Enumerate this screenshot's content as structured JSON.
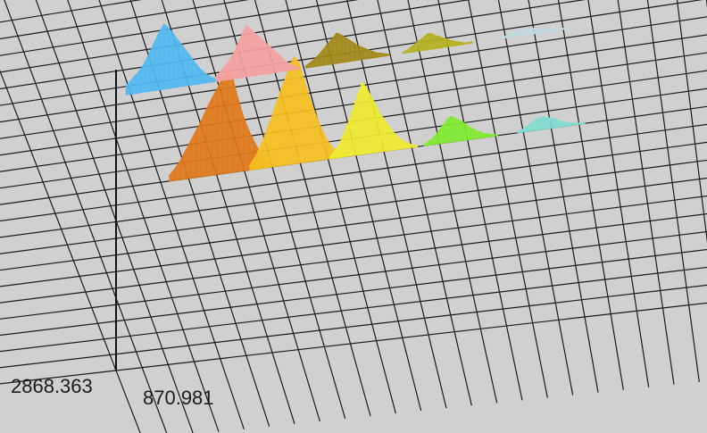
{
  "chart_data": {
    "type": "area",
    "projection": "3d-waterfall",
    "title": "",
    "axis_readouts": {
      "left": "2868.363",
      "right": "870.981"
    },
    "grid": true,
    "background_color": "#d0d0d0",
    "grid_color": "#1a1a1a",
    "series": [
      {
        "color": "#e07818",
        "values": [
          0.05,
          0.1,
          0.16,
          0.24,
          0.32,
          0.4,
          0.48,
          0.58,
          0.66,
          0.74,
          0.82,
          0.88,
          0.8,
          0.62,
          0.46,
          0.34,
          0.24,
          0.15,
          0.08,
          0.03
        ]
      },
      {
        "color": "#f5c020",
        "values": [
          0.04,
          0.1,
          0.18,
          0.28,
          0.38,
          0.5,
          0.62,
          0.72,
          0.84,
          0.92,
          0.86,
          0.7,
          0.56,
          0.44,
          0.32,
          0.22,
          0.14,
          0.08,
          0.04,
          0.02
        ]
      },
      {
        "color": "#f0ea30",
        "values": [
          0.02,
          0.06,
          0.12,
          0.2,
          0.3,
          0.4,
          0.52,
          0.62,
          0.56,
          0.48,
          0.4,
          0.32,
          0.26,
          0.2,
          0.14,
          0.1,
          0.06,
          0.04,
          0.02,
          0.01
        ]
      },
      {
        "color": "#80ea30",
        "values": [
          0.01,
          0.03,
          0.05,
          0.08,
          0.12,
          0.16,
          0.2,
          0.22,
          0.2,
          0.18,
          0.16,
          0.13,
          0.1,
          0.08,
          0.06,
          0.04,
          0.03,
          0.02,
          0.01,
          0.01
        ]
      },
      {
        "color": "#80dcd0",
        "values": [
          0.01,
          0.02,
          0.03,
          0.05,
          0.07,
          0.09,
          0.1,
          0.11,
          0.1,
          0.09,
          0.08,
          0.07,
          0.05,
          0.04,
          0.03,
          0.02,
          0.02,
          0.01,
          0.01,
          0.01
        ]
      },
      {
        "color": "#50b8f0",
        "values": [
          0.08,
          0.12,
          0.16,
          0.2,
          0.26,
          0.34,
          0.42,
          0.5,
          0.56,
          0.52,
          0.46,
          0.4,
          0.34,
          0.28,
          0.22,
          0.16,
          0.11,
          0.07,
          0.04,
          0.02
        ]
      },
      {
        "color": "#f4a0a0",
        "values": [
          0.04,
          0.08,
          0.12,
          0.16,
          0.22,
          0.3,
          0.38,
          0.44,
          0.4,
          0.36,
          0.32,
          0.28,
          0.24,
          0.2,
          0.16,
          0.12,
          0.08,
          0.05,
          0.03,
          0.01
        ]
      },
      {
        "color": "#a08818",
        "values": [
          0.02,
          0.04,
          0.07,
          0.1,
          0.14,
          0.18,
          0.22,
          0.26,
          0.24,
          0.21,
          0.18,
          0.15,
          0.12,
          0.1,
          0.08,
          0.06,
          0.04,
          0.03,
          0.02,
          0.01
        ]
      },
      {
        "color": "#b4b020",
        "values": [
          0.01,
          0.02,
          0.04,
          0.06,
          0.08,
          0.1,
          0.12,
          0.14,
          0.13,
          0.11,
          0.1,
          0.08,
          0.07,
          0.05,
          0.04,
          0.03,
          0.02,
          0.01,
          0.01,
          0.01
        ]
      },
      {
        "color": "#c0d8e0",
        "values": [
          0.01,
          0.01,
          0.02,
          0.03,
          0.04,
          0.05,
          0.05,
          0.06,
          0.05,
          0.05,
          0.04,
          0.03,
          0.03,
          0.02,
          0.02,
          0.01,
          0.01,
          0.01,
          0.01,
          0.01
        ]
      }
    ]
  }
}
